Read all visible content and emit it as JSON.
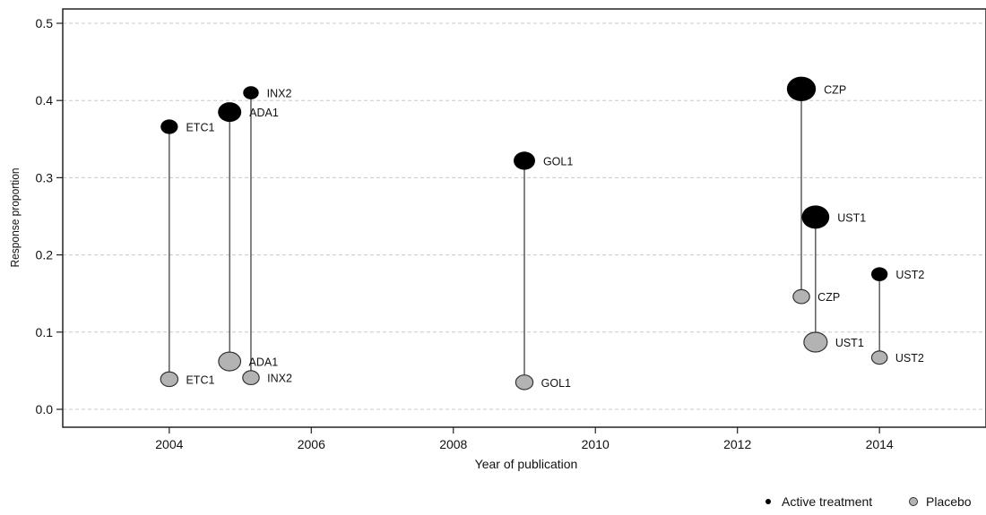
{
  "chart_data": {
    "type": "scatter",
    "title": "",
    "xlabel": "Year of publication",
    "ylabel": "Response proportion",
    "xlim": [
      2002.5,
      2015.5
    ],
    "ylim": [
      -0.03,
      0.52
    ],
    "xticks": [
      2004,
      2006,
      2008,
      2010,
      2012,
      2014
    ],
    "xtick_labels": [
      "2004",
      "2006",
      "2008",
      "2010",
      "2012",
      "2014"
    ],
    "yticks": [
      0.0,
      0.1,
      0.2,
      0.3,
      0.4,
      0.5
    ],
    "ytick_labels": [
      "0.0",
      "0.1",
      "0.2",
      "0.3",
      "0.4",
      "0.5"
    ],
    "grid": "horizontal dashed",
    "legend_position": "bottom-right",
    "series": [
      {
        "name": "Active treatment",
        "color": "#000000",
        "points": [
          {
            "label": "ETC1",
            "x": 2004.0,
            "y": 0.366,
            "weight": 0.55
          },
          {
            "label": "ADA1",
            "x": 2004.85,
            "y": 0.385,
            "weight": 1.0
          },
          {
            "label": "INX2",
            "x": 2005.15,
            "y": 0.41,
            "weight": 0.45
          },
          {
            "label": "GOL1",
            "x": 2009.0,
            "y": 0.322,
            "weight": 0.85
          },
          {
            "label": "CZP",
            "x": 2012.9,
            "y": 0.415,
            "weight": 1.55
          },
          {
            "label": "UST1",
            "x": 2013.1,
            "y": 0.249,
            "weight": 1.4
          },
          {
            "label": "UST2",
            "x": 2014.0,
            "y": 0.175,
            "weight": 0.5
          }
        ]
      },
      {
        "name": "Placebo",
        "color": "#b3b3b3",
        "points": [
          {
            "label": "ETC1",
            "x": 2004.0,
            "y": 0.039,
            "weight": 0.55
          },
          {
            "label": "ADA1",
            "x": 2004.85,
            "y": 0.062,
            "weight": 0.9
          },
          {
            "label": "INX2",
            "x": 2005.15,
            "y": 0.041,
            "weight": 0.5
          },
          {
            "label": "GOL1",
            "x": 2009.0,
            "y": 0.035,
            "weight": 0.55
          },
          {
            "label": "CZP",
            "x": 2012.9,
            "y": 0.146,
            "weight": 0.5
          },
          {
            "label": "UST1",
            "x": 2013.1,
            "y": 0.087,
            "weight": 1.0
          },
          {
            "label": "UST2",
            "x": 2014.0,
            "y": 0.067,
            "weight": 0.45
          }
        ]
      }
    ]
  },
  "legend": {
    "active_label": "Active treatment",
    "placebo_label": "Placebo"
  }
}
